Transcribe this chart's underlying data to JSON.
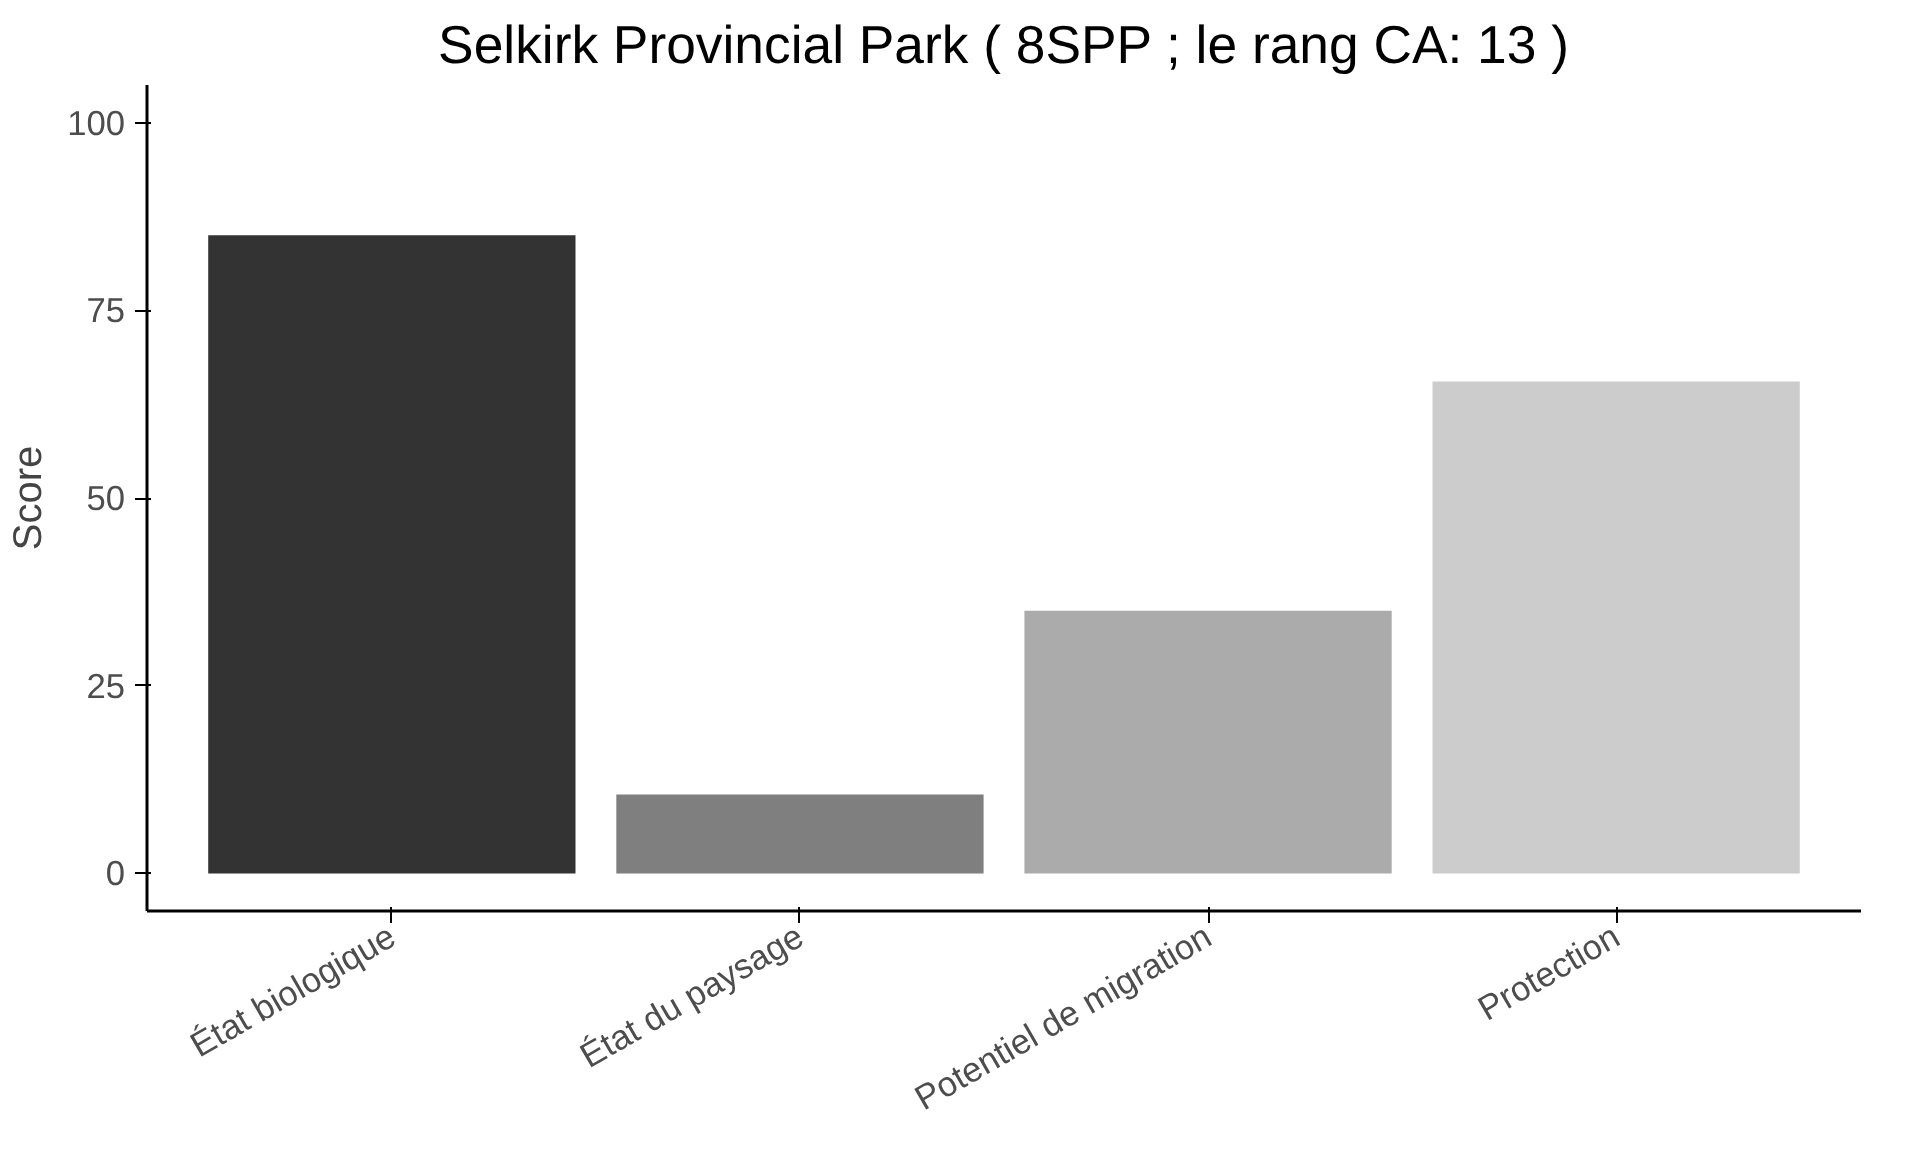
{
  "chart_data": {
    "type": "bar",
    "title": "Selkirk Provincial Park ( 8SPP ; le rang CA: 13 )",
    "ylabel": "Score",
    "categories": [
      "État biologique",
      "État du paysage",
      "Potentiel de migration",
      "Protection"
    ],
    "values": [
      85,
      10.5,
      35,
      65.5
    ],
    "colors": [
      "#333333",
      "#7f7f7f",
      "#ababab",
      "#cccccc"
    ],
    "ylim": [
      -5,
      105
    ],
    "yticks": [
      0,
      25,
      50,
      75,
      100
    ],
    "grid": false
  }
}
